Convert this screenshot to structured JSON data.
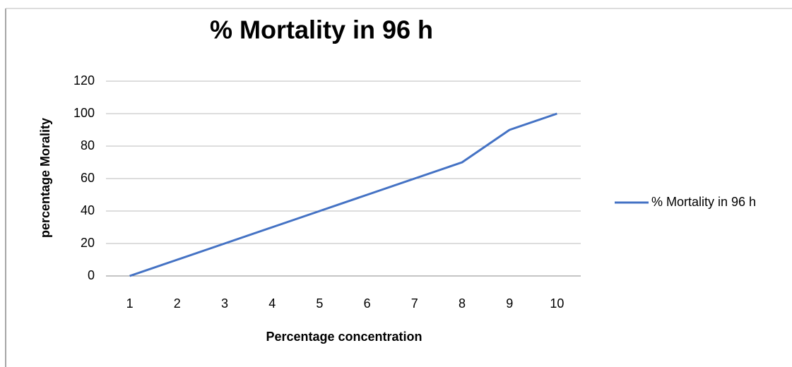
{
  "chart_data": {
    "type": "line",
    "title": "% Mortality in 96 h",
    "x_label": "Percentage concentration",
    "y_label": "percentage Morality",
    "categories": [
      1,
      2,
      3,
      4,
      5,
      6,
      7,
      8,
      9,
      10
    ],
    "series": [
      {
        "name": "% Mortality in 96 h",
        "color": "#4472c4",
        "values": [
          0,
          10,
          20,
          30,
          40,
          50,
          60,
          70,
          90,
          100
        ]
      }
    ],
    "ylim": [
      0,
      120
    ],
    "yticks": [
      0,
      20,
      40,
      60,
      80,
      100,
      120
    ],
    "grid": true,
    "legend": "right"
  }
}
